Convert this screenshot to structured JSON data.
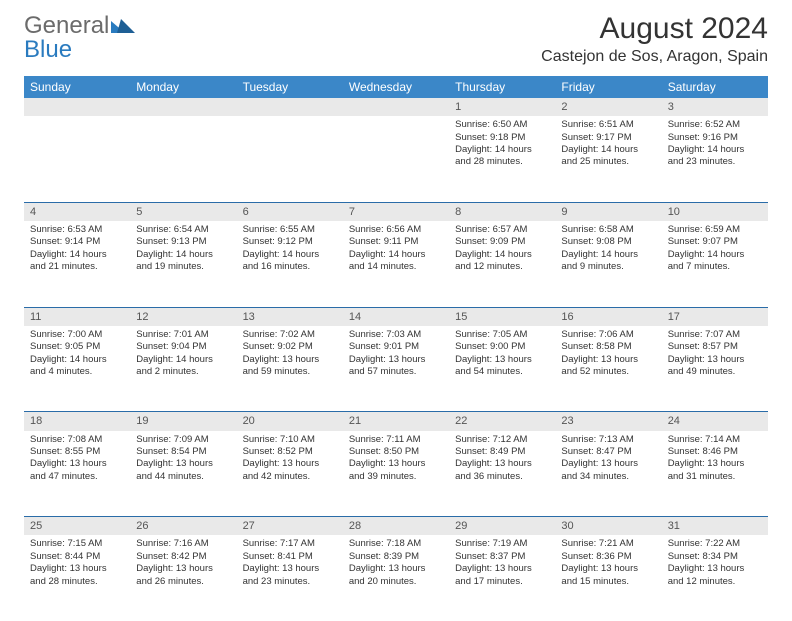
{
  "brand": {
    "part1": "General",
    "part2": "Blue"
  },
  "title": "August 2024",
  "location": "Castejon de Sos, Aragon, Spain",
  "colors": {
    "header_bg": "#3b87c8",
    "header_text": "#ffffff",
    "daynum_bg": "#e9e9e9",
    "border": "#2a6ca8",
    "logo_gray": "#6b6b6b",
    "logo_blue": "#2a7bbf",
    "text": "#333333"
  },
  "weekdays": [
    "Sunday",
    "Monday",
    "Tuesday",
    "Wednesday",
    "Thursday",
    "Friday",
    "Saturday"
  ],
  "weeks": [
    [
      null,
      null,
      null,
      null,
      {
        "n": "1",
        "sr": "Sunrise: 6:50 AM",
        "ss": "Sunset: 9:18 PM",
        "dl1": "Daylight: 14 hours",
        "dl2": "and 28 minutes."
      },
      {
        "n": "2",
        "sr": "Sunrise: 6:51 AM",
        "ss": "Sunset: 9:17 PM",
        "dl1": "Daylight: 14 hours",
        "dl2": "and 25 minutes."
      },
      {
        "n": "3",
        "sr": "Sunrise: 6:52 AM",
        "ss": "Sunset: 9:16 PM",
        "dl1": "Daylight: 14 hours",
        "dl2": "and 23 minutes."
      }
    ],
    [
      {
        "n": "4",
        "sr": "Sunrise: 6:53 AM",
        "ss": "Sunset: 9:14 PM",
        "dl1": "Daylight: 14 hours",
        "dl2": "and 21 minutes."
      },
      {
        "n": "5",
        "sr": "Sunrise: 6:54 AM",
        "ss": "Sunset: 9:13 PM",
        "dl1": "Daylight: 14 hours",
        "dl2": "and 19 minutes."
      },
      {
        "n": "6",
        "sr": "Sunrise: 6:55 AM",
        "ss": "Sunset: 9:12 PM",
        "dl1": "Daylight: 14 hours",
        "dl2": "and 16 minutes."
      },
      {
        "n": "7",
        "sr": "Sunrise: 6:56 AM",
        "ss": "Sunset: 9:11 PM",
        "dl1": "Daylight: 14 hours",
        "dl2": "and 14 minutes."
      },
      {
        "n": "8",
        "sr": "Sunrise: 6:57 AM",
        "ss": "Sunset: 9:09 PM",
        "dl1": "Daylight: 14 hours",
        "dl2": "and 12 minutes."
      },
      {
        "n": "9",
        "sr": "Sunrise: 6:58 AM",
        "ss": "Sunset: 9:08 PM",
        "dl1": "Daylight: 14 hours",
        "dl2": "and 9 minutes."
      },
      {
        "n": "10",
        "sr": "Sunrise: 6:59 AM",
        "ss": "Sunset: 9:07 PM",
        "dl1": "Daylight: 14 hours",
        "dl2": "and 7 minutes."
      }
    ],
    [
      {
        "n": "11",
        "sr": "Sunrise: 7:00 AM",
        "ss": "Sunset: 9:05 PM",
        "dl1": "Daylight: 14 hours",
        "dl2": "and 4 minutes."
      },
      {
        "n": "12",
        "sr": "Sunrise: 7:01 AM",
        "ss": "Sunset: 9:04 PM",
        "dl1": "Daylight: 14 hours",
        "dl2": "and 2 minutes."
      },
      {
        "n": "13",
        "sr": "Sunrise: 7:02 AM",
        "ss": "Sunset: 9:02 PM",
        "dl1": "Daylight: 13 hours",
        "dl2": "and 59 minutes."
      },
      {
        "n": "14",
        "sr": "Sunrise: 7:03 AM",
        "ss": "Sunset: 9:01 PM",
        "dl1": "Daylight: 13 hours",
        "dl2": "and 57 minutes."
      },
      {
        "n": "15",
        "sr": "Sunrise: 7:05 AM",
        "ss": "Sunset: 9:00 PM",
        "dl1": "Daylight: 13 hours",
        "dl2": "and 54 minutes."
      },
      {
        "n": "16",
        "sr": "Sunrise: 7:06 AM",
        "ss": "Sunset: 8:58 PM",
        "dl1": "Daylight: 13 hours",
        "dl2": "and 52 minutes."
      },
      {
        "n": "17",
        "sr": "Sunrise: 7:07 AM",
        "ss": "Sunset: 8:57 PM",
        "dl1": "Daylight: 13 hours",
        "dl2": "and 49 minutes."
      }
    ],
    [
      {
        "n": "18",
        "sr": "Sunrise: 7:08 AM",
        "ss": "Sunset: 8:55 PM",
        "dl1": "Daylight: 13 hours",
        "dl2": "and 47 minutes."
      },
      {
        "n": "19",
        "sr": "Sunrise: 7:09 AM",
        "ss": "Sunset: 8:54 PM",
        "dl1": "Daylight: 13 hours",
        "dl2": "and 44 minutes."
      },
      {
        "n": "20",
        "sr": "Sunrise: 7:10 AM",
        "ss": "Sunset: 8:52 PM",
        "dl1": "Daylight: 13 hours",
        "dl2": "and 42 minutes."
      },
      {
        "n": "21",
        "sr": "Sunrise: 7:11 AM",
        "ss": "Sunset: 8:50 PM",
        "dl1": "Daylight: 13 hours",
        "dl2": "and 39 minutes."
      },
      {
        "n": "22",
        "sr": "Sunrise: 7:12 AM",
        "ss": "Sunset: 8:49 PM",
        "dl1": "Daylight: 13 hours",
        "dl2": "and 36 minutes."
      },
      {
        "n": "23",
        "sr": "Sunrise: 7:13 AM",
        "ss": "Sunset: 8:47 PM",
        "dl1": "Daylight: 13 hours",
        "dl2": "and 34 minutes."
      },
      {
        "n": "24",
        "sr": "Sunrise: 7:14 AM",
        "ss": "Sunset: 8:46 PM",
        "dl1": "Daylight: 13 hours",
        "dl2": "and 31 minutes."
      }
    ],
    [
      {
        "n": "25",
        "sr": "Sunrise: 7:15 AM",
        "ss": "Sunset: 8:44 PM",
        "dl1": "Daylight: 13 hours",
        "dl2": "and 28 minutes."
      },
      {
        "n": "26",
        "sr": "Sunrise: 7:16 AM",
        "ss": "Sunset: 8:42 PM",
        "dl1": "Daylight: 13 hours",
        "dl2": "and 26 minutes."
      },
      {
        "n": "27",
        "sr": "Sunrise: 7:17 AM",
        "ss": "Sunset: 8:41 PM",
        "dl1": "Daylight: 13 hours",
        "dl2": "and 23 minutes."
      },
      {
        "n": "28",
        "sr": "Sunrise: 7:18 AM",
        "ss": "Sunset: 8:39 PM",
        "dl1": "Daylight: 13 hours",
        "dl2": "and 20 minutes."
      },
      {
        "n": "29",
        "sr": "Sunrise: 7:19 AM",
        "ss": "Sunset: 8:37 PM",
        "dl1": "Daylight: 13 hours",
        "dl2": "and 17 minutes."
      },
      {
        "n": "30",
        "sr": "Sunrise: 7:21 AM",
        "ss": "Sunset: 8:36 PM",
        "dl1": "Daylight: 13 hours",
        "dl2": "and 15 minutes."
      },
      {
        "n": "31",
        "sr": "Sunrise: 7:22 AM",
        "ss": "Sunset: 8:34 PM",
        "dl1": "Daylight: 13 hours",
        "dl2": "and 12 minutes."
      }
    ]
  ]
}
